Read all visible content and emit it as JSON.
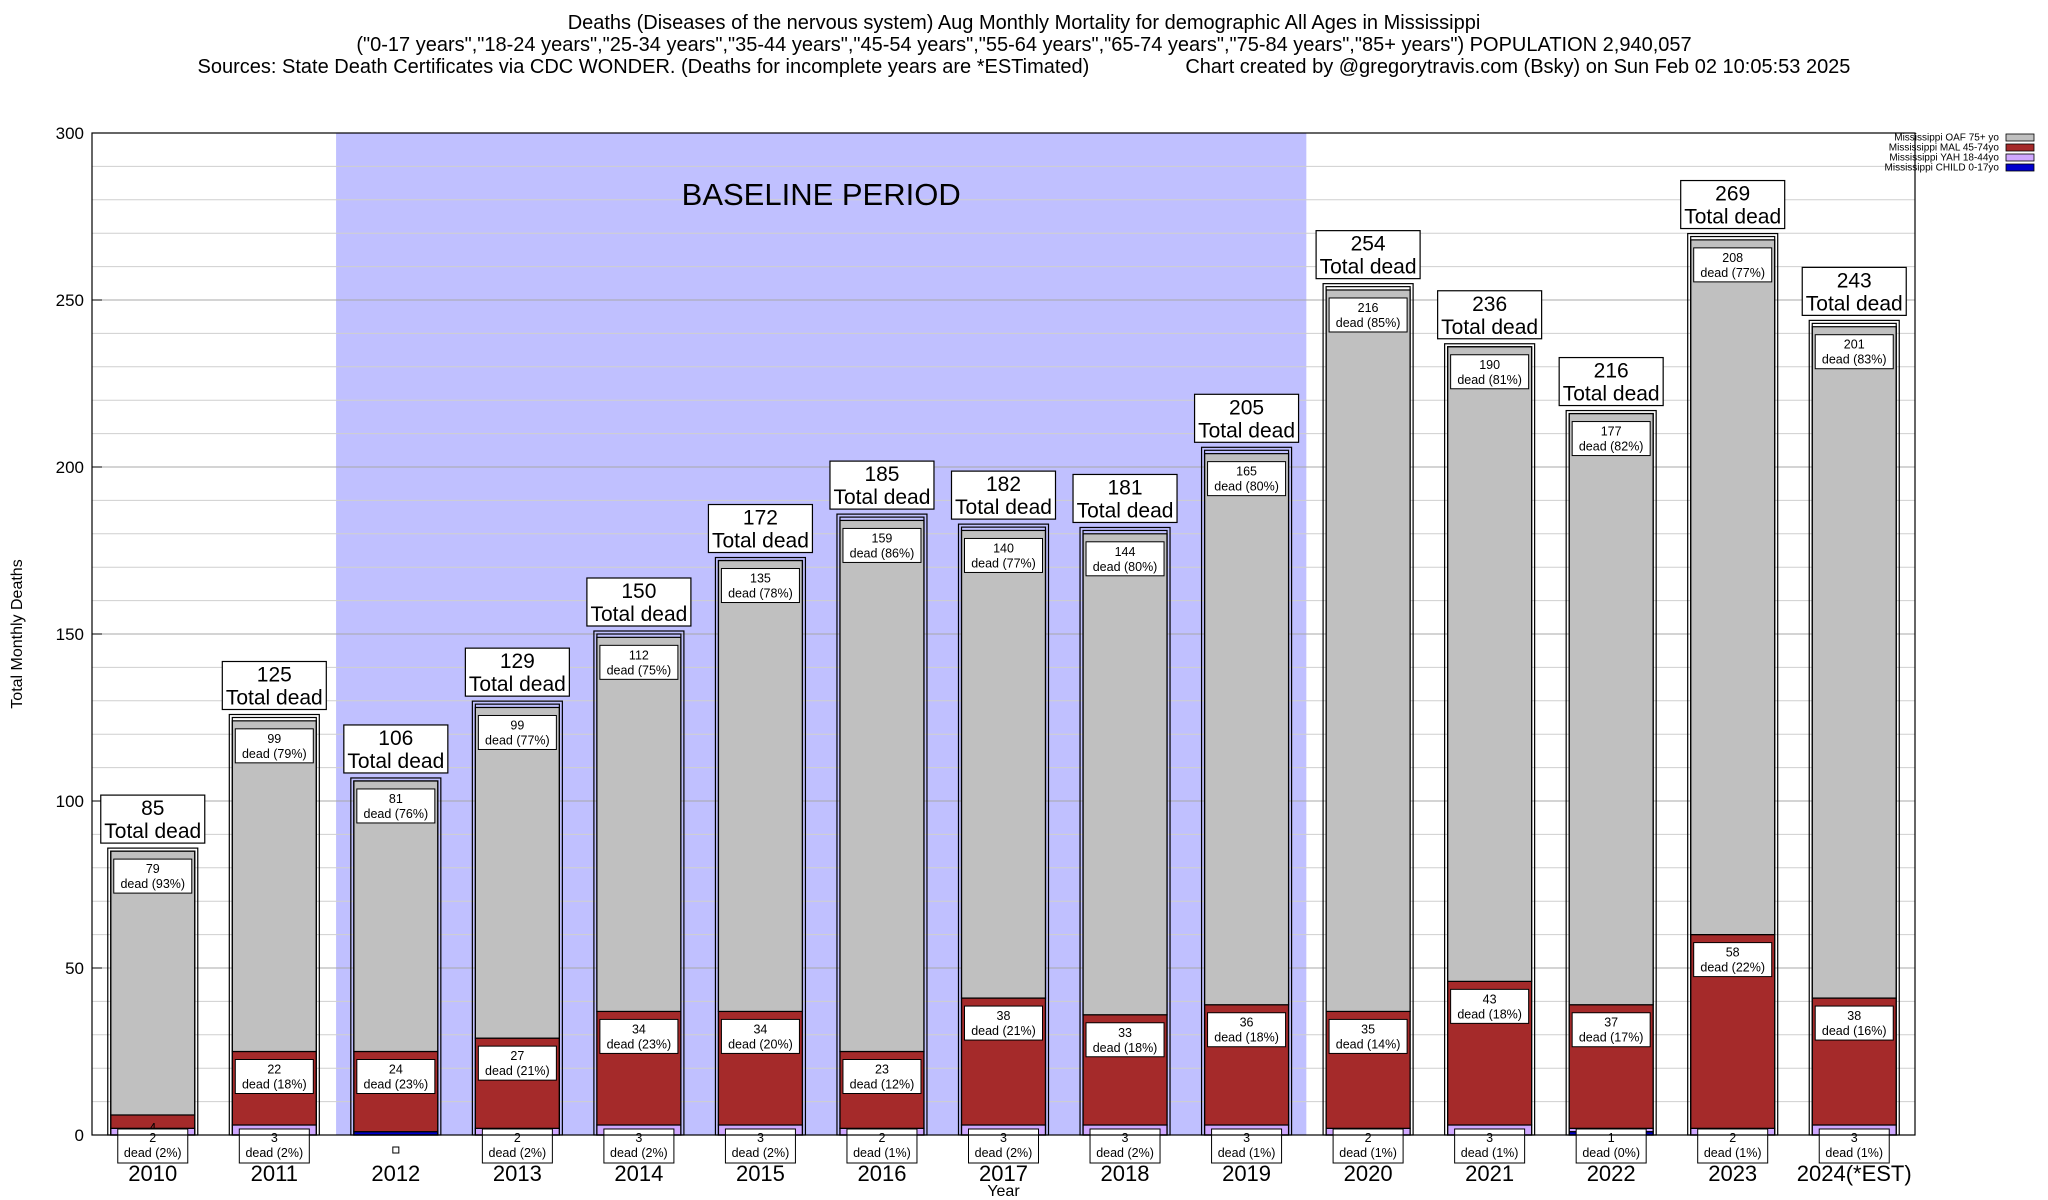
{
  "chart_data": {
    "type": "bar",
    "stacked": true,
    "title_lines": [
      "Deaths (Diseases of the nervous system) Aug Monthly Mortality for demographic All Ages in Mississippi",
      "(\"0-17 years\",\"18-24 years\",\"25-34 years\",\"35-44 years\",\"45-54 years\",\"55-64 years\",\"65-74 years\",\"75-84 years\",\"85+ years\") POPULATION 2,940,057"
    ],
    "sources_text": "Sources: State Death Certificates via CDC WONDER. (Deaths for incomplete years are *ESTimated)",
    "credit_text": "Chart created by @gregorytravis.com (Bsky) on Sun Feb 02 10:05:53 2025",
    "xlabel": "Year",
    "ylabel": "Total Monthly Deaths",
    "ylim": [
      0,
      300
    ],
    "y_ticks": [
      0,
      50,
      100,
      150,
      200,
      250,
      300
    ],
    "categories": [
      "2010",
      "2011",
      "2012",
      "2013",
      "2014",
      "2015",
      "2016",
      "2017",
      "2018",
      "2019",
      "2020",
      "2021",
      "2022",
      "2023",
      "2024(*EST)"
    ],
    "totals": [
      85,
      125,
      106,
      129,
      150,
      172,
      185,
      182,
      181,
      205,
      254,
      236,
      216,
      269,
      243
    ],
    "total_suffix": "Total dead",
    "series": [
      {
        "name": "Mississippi CHILD 0-17yo",
        "color": "#0000cc",
        "values": [
          0,
          0,
          1,
          0,
          0,
          0,
          0,
          0,
          0,
          0,
          0,
          0,
          1,
          0,
          0
        ],
        "labels": [
          "",
          "",
          "",
          "",
          "",
          "",
          "",
          "",
          "",
          "",
          "",
          "",
          "",
          "",
          ""
        ]
      },
      {
        "name": "Mississippi YAH 18-44yo",
        "color": "#d0a8ff",
        "values": [
          2,
          3,
          0,
          2,
          3,
          3,
          2,
          3,
          3,
          3,
          2,
          3,
          1,
          2,
          3
        ],
        "labels": [
          "dead (2%)",
          "dead (2%)",
          "",
          "dead (2%)",
          "dead (2%)",
          "dead (2%)",
          "dead (1%)",
          "dead (2%)",
          "dead (2%)",
          "dead (1%)",
          "dead (1%)",
          "dead (1%)",
          "dead (0%)",
          "dead (1%)",
          "dead (1%)"
        ]
      },
      {
        "name": "Mississippi MAL 45-74yo",
        "color": "#a52a2a",
        "values": [
          4,
          22,
          24,
          27,
          34,
          34,
          23,
          38,
          33,
          36,
          35,
          43,
          37,
          58,
          38
        ],
        "labels": [
          "",
          "dead (18%)",
          "dead (23%)",
          "dead (21%)",
          "dead (23%)",
          "dead (20%)",
          "dead (12%)",
          "dead (21%)",
          "dead (18%)",
          "dead (18%)",
          "dead (14%)",
          "dead (18%)",
          "dead (17%)",
          "dead (22%)",
          "dead (16%)"
        ]
      },
      {
        "name": "Mississippi OAF 75+ yo",
        "color": "#c0c0c0",
        "values": [
          79,
          99,
          81,
          99,
          112,
          135,
          159,
          140,
          144,
          165,
          216,
          190,
          177,
          208,
          201
        ],
        "labels": [
          "dead (93%)",
          "dead (79%)",
          "dead (76%)",
          "dead (77%)",
          "dead (75%)",
          "dead (78%)",
          "dead (86%)",
          "dead (77%)",
          "dead (80%)",
          "dead (80%)",
          "dead (85%)",
          "dead (81%)",
          "dead (82%)",
          "dead (77%)",
          "dead (83%)"
        ]
      }
    ],
    "legend_order": [
      "Mississippi OAF 75+ yo",
      "Mississippi MAL 45-74yo",
      "Mississippi YAH 18-44yo",
      "Mississippi CHILD 0-17yo"
    ],
    "legend_position": "top-right outside",
    "grid": "horizontal",
    "annotation": {
      "text": "BASELINE PERIOD",
      "x_from": "2012",
      "x_to": "2019",
      "color": "#c0c0ff"
    }
  }
}
